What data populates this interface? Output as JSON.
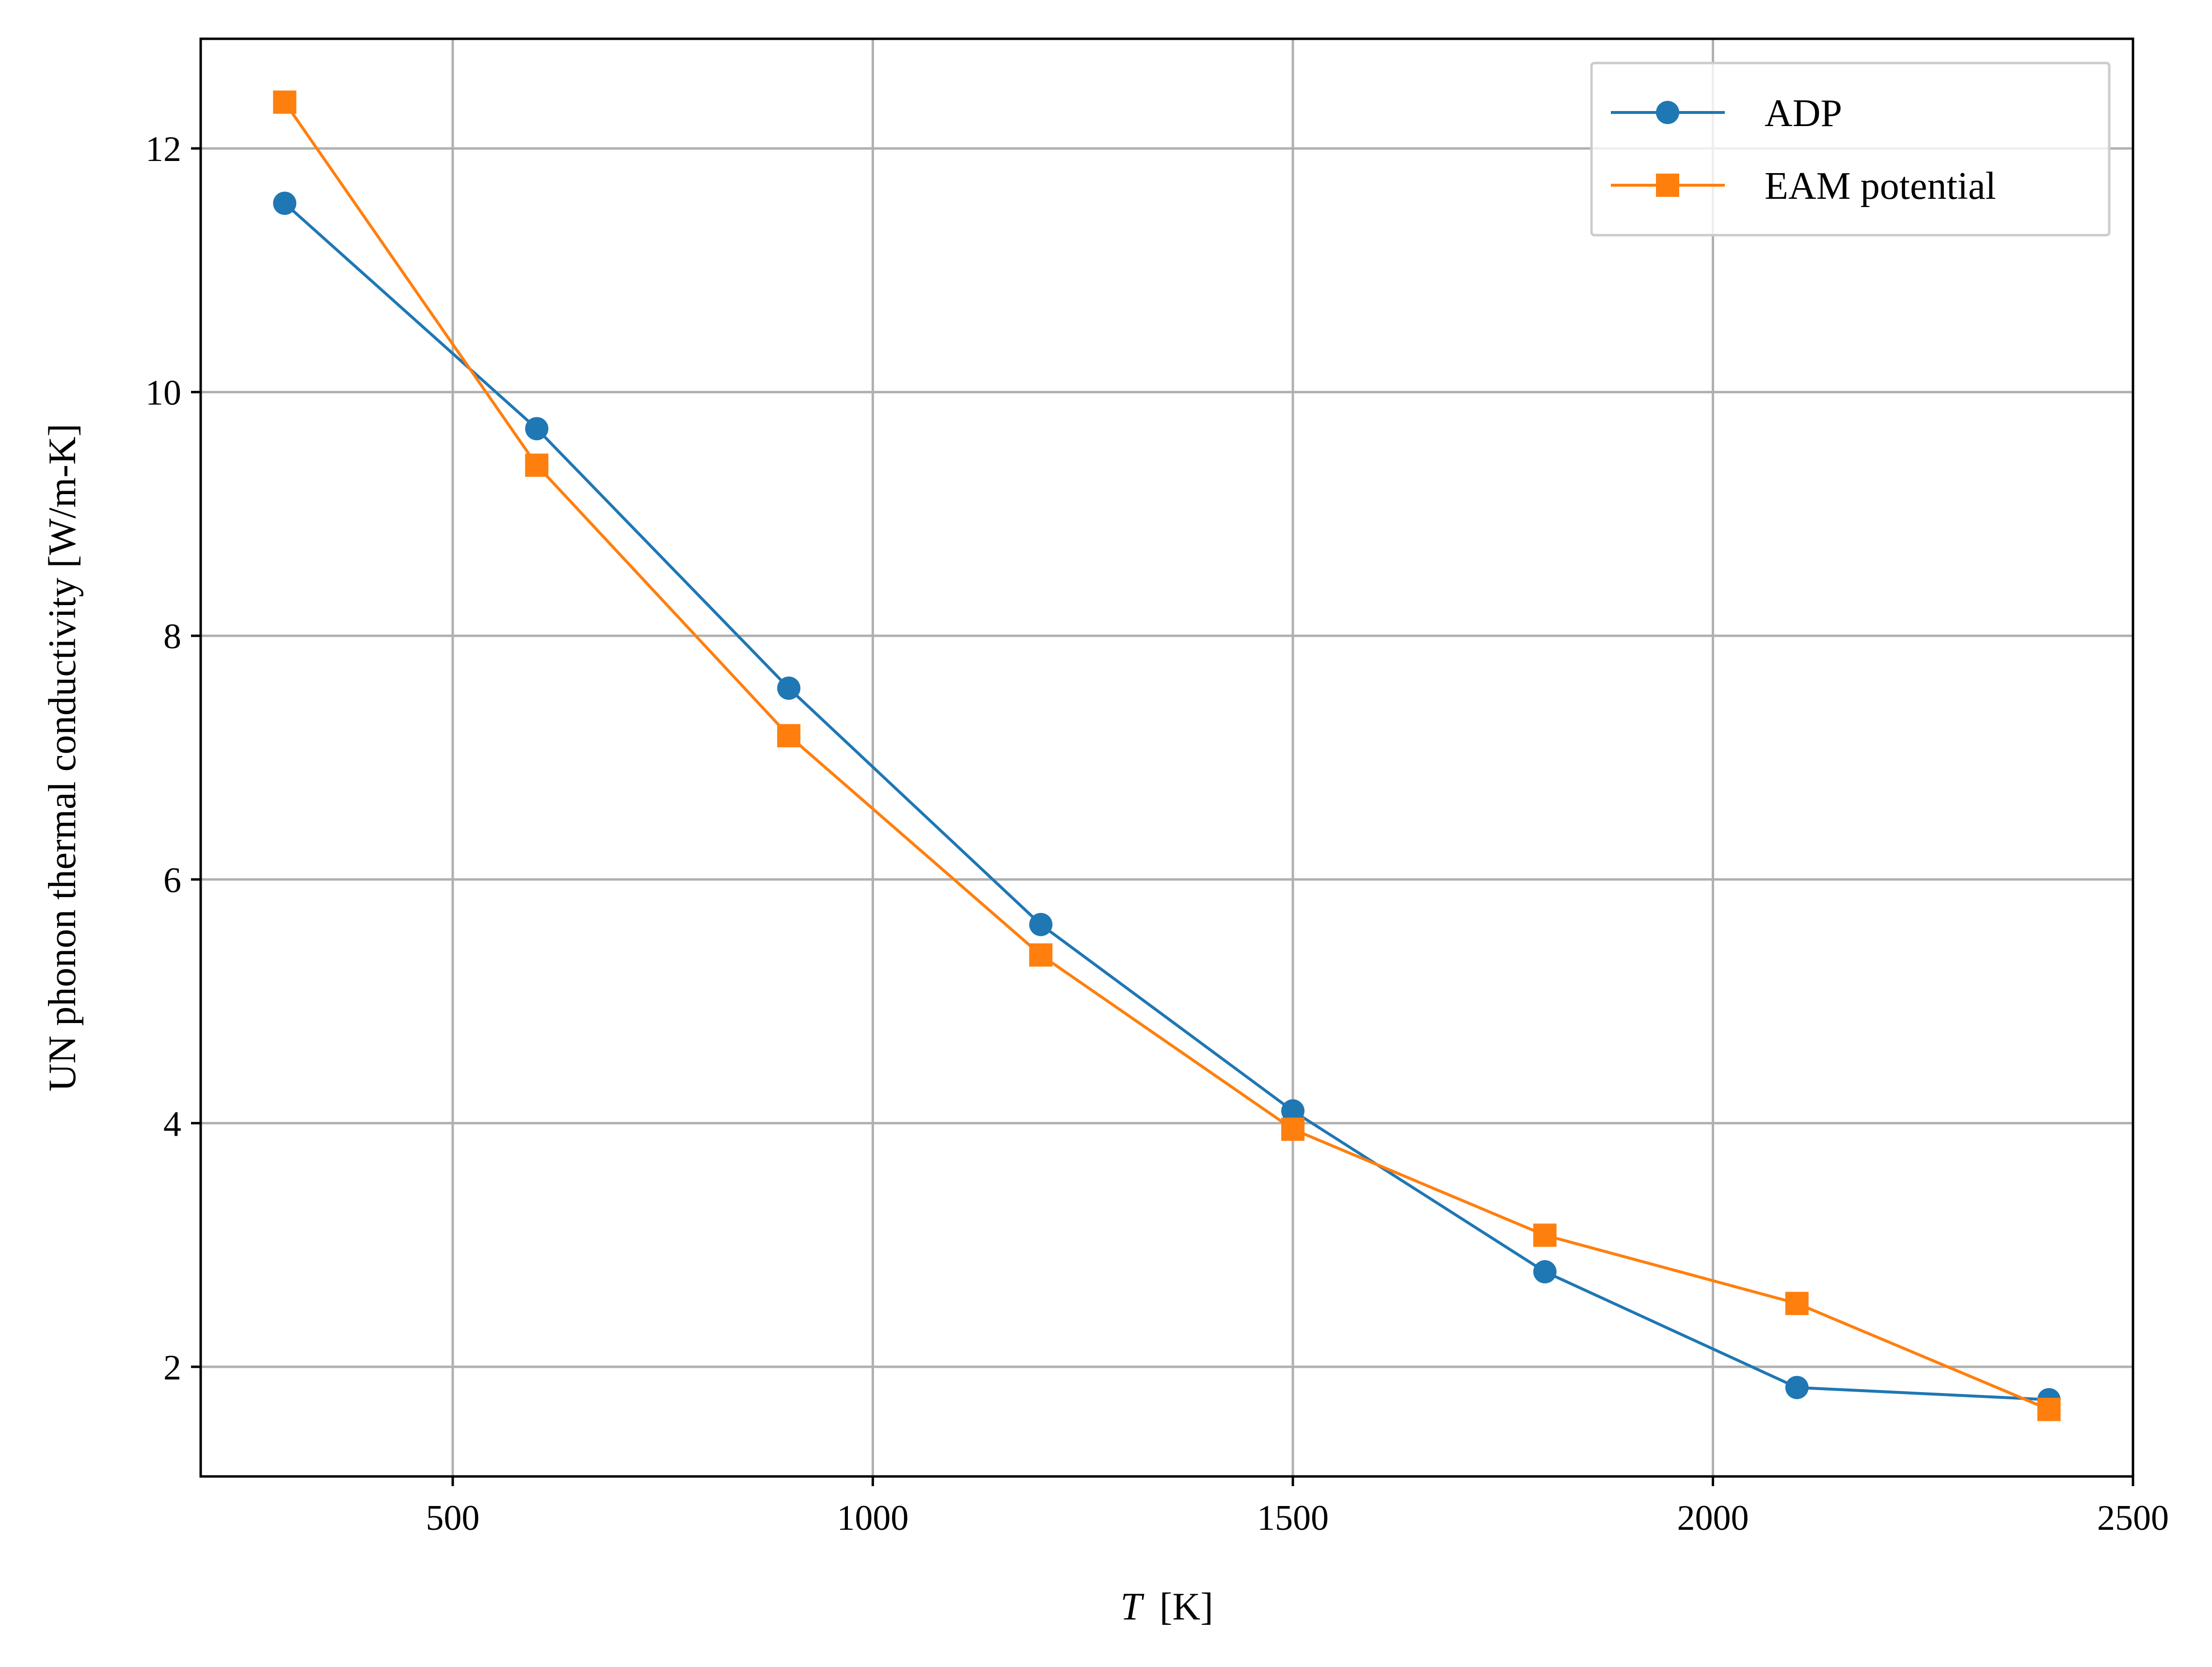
{
  "chart_data": {
    "type": "line",
    "title": "",
    "xlabel_italic": "T",
    "xlabel_unit": "[K]",
    "ylabel": "UN phonon thermal conductivity [W/m-K]",
    "xlim": [
      200,
      2500
    ],
    "ylim": [
      1.1,
      12.9
    ],
    "xticks": [
      500,
      1000,
      1500,
      2000,
      2500
    ],
    "yticks": [
      2,
      4,
      6,
      8,
      10,
      12
    ],
    "xtick_labels": [
      "500",
      "1000",
      "1500",
      "2000",
      "2500"
    ],
    "ytick_labels": [
      "2",
      "4",
      "6",
      "8",
      "10",
      "12"
    ],
    "grid": true,
    "legend_position": "top-right",
    "x": [
      300,
      600,
      900,
      1200,
      1500,
      1800,
      2100,
      2400
    ],
    "series": [
      {
        "name": "ADP",
        "marker": "circle",
        "color": "#1f77b4",
        "values": [
          11.55,
          9.7,
          7.57,
          5.63,
          4.1,
          2.78,
          1.83,
          1.73
        ]
      },
      {
        "name": "EAM potential",
        "marker": "square",
        "color": "#ff7f0e",
        "values": [
          12.38,
          9.4,
          7.18,
          5.38,
          3.95,
          3.08,
          2.52,
          1.65
        ]
      }
    ]
  }
}
